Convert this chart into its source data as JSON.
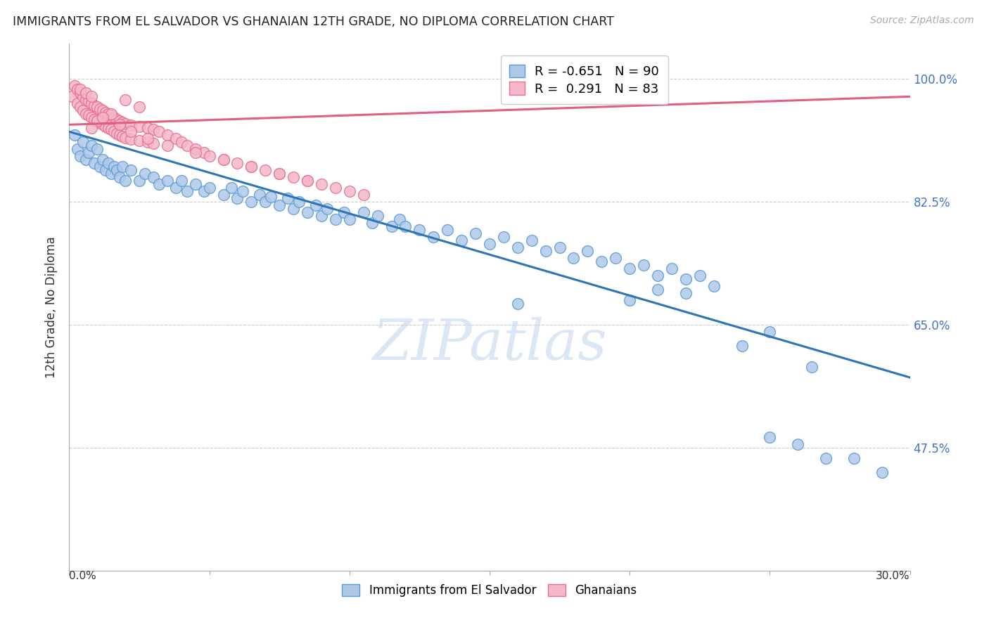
{
  "title": "IMMIGRANTS FROM EL SALVADOR VS GHANAIAN 12TH GRADE, NO DIPLOMA CORRELATION CHART",
  "source": "Source: ZipAtlas.com",
  "ylabel": "12th Grade, No Diploma",
  "ytick_labels": [
    "100.0%",
    "82.5%",
    "65.0%",
    "47.5%"
  ],
  "ytick_values": [
    1.0,
    0.825,
    0.65,
    0.475
  ],
  "xlim": [
    0.0,
    0.3
  ],
  "ylim": [
    0.3,
    1.05
  ],
  "legend_blue_r": "-0.651",
  "legend_blue_n": "90",
  "legend_pink_r": "0.291",
  "legend_pink_n": "83",
  "blue_color": "#aec8e8",
  "pink_color": "#f4b8c8",
  "blue_edge_color": "#5b9bd5",
  "pink_edge_color": "#e87090",
  "blue_line_color": "#2e75b6",
  "pink_line_color": "#e06080",
  "watermark": "ZIPatlas",
  "watermark_blue": "#c5d8f0",
  "blue_trend_x0": 0.0,
  "blue_trend_y0": 0.925,
  "blue_trend_x1": 0.3,
  "blue_trend_y1": 0.575,
  "pink_trend_x0": 0.0,
  "pink_trend_y0": 0.935,
  "pink_trend_x1": 0.3,
  "pink_trend_y1": 0.975,
  "blue_x": [
    0.002,
    0.003,
    0.004,
    0.005,
    0.006,
    0.007,
    0.008,
    0.009,
    0.01,
    0.011,
    0.012,
    0.013,
    0.014,
    0.015,
    0.016,
    0.017,
    0.018,
    0.019,
    0.02,
    0.022,
    0.025,
    0.027,
    0.03,
    0.032,
    0.035,
    0.038,
    0.04,
    0.042,
    0.045,
    0.048,
    0.05,
    0.055,
    0.058,
    0.06,
    0.062,
    0.065,
    0.068,
    0.07,
    0.072,
    0.075,
    0.078,
    0.08,
    0.082,
    0.085,
    0.088,
    0.09,
    0.092,
    0.095,
    0.098,
    0.1,
    0.105,
    0.108,
    0.11,
    0.115,
    0.118,
    0.12,
    0.125,
    0.13,
    0.135,
    0.14,
    0.145,
    0.15,
    0.155,
    0.16,
    0.165,
    0.17,
    0.175,
    0.18,
    0.185,
    0.19,
    0.195,
    0.2,
    0.205,
    0.21,
    0.215,
    0.22,
    0.225,
    0.23,
    0.24,
    0.25,
    0.16,
    0.2,
    0.21,
    0.22,
    0.25,
    0.26,
    0.265,
    0.27,
    0.28,
    0.29
  ],
  "blue_y": [
    0.92,
    0.9,
    0.89,
    0.91,
    0.885,
    0.895,
    0.905,
    0.88,
    0.9,
    0.875,
    0.885,
    0.87,
    0.88,
    0.865,
    0.875,
    0.87,
    0.86,
    0.875,
    0.855,
    0.87,
    0.855,
    0.865,
    0.86,
    0.85,
    0.855,
    0.845,
    0.855,
    0.84,
    0.85,
    0.84,
    0.845,
    0.835,
    0.845,
    0.83,
    0.84,
    0.825,
    0.835,
    0.825,
    0.832,
    0.82,
    0.83,
    0.815,
    0.825,
    0.81,
    0.82,
    0.805,
    0.815,
    0.8,
    0.81,
    0.8,
    0.81,
    0.795,
    0.805,
    0.79,
    0.8,
    0.79,
    0.785,
    0.775,
    0.785,
    0.77,
    0.78,
    0.765,
    0.775,
    0.76,
    0.77,
    0.755,
    0.76,
    0.745,
    0.755,
    0.74,
    0.745,
    0.73,
    0.735,
    0.72,
    0.73,
    0.715,
    0.72,
    0.705,
    0.62,
    0.64,
    0.68,
    0.685,
    0.7,
    0.695,
    0.49,
    0.48,
    0.59,
    0.46,
    0.46,
    0.44
  ],
  "pink_x": [
    0.001,
    0.002,
    0.003,
    0.003,
    0.004,
    0.004,
    0.005,
    0.005,
    0.006,
    0.006,
    0.007,
    0.007,
    0.008,
    0.008,
    0.009,
    0.009,
    0.01,
    0.01,
    0.011,
    0.011,
    0.012,
    0.012,
    0.013,
    0.013,
    0.014,
    0.014,
    0.015,
    0.015,
    0.016,
    0.016,
    0.017,
    0.017,
    0.018,
    0.018,
    0.019,
    0.019,
    0.02,
    0.02,
    0.022,
    0.022,
    0.025,
    0.025,
    0.028,
    0.028,
    0.03,
    0.03,
    0.032,
    0.035,
    0.038,
    0.04,
    0.042,
    0.045,
    0.048,
    0.05,
    0.055,
    0.06,
    0.065,
    0.07,
    0.075,
    0.08,
    0.085,
    0.09,
    0.095,
    0.1,
    0.105,
    0.02,
    0.025,
    0.015,
    0.01,
    0.008,
    0.012,
    0.018,
    0.022,
    0.028,
    0.035,
    0.045,
    0.055,
    0.065,
    0.075,
    0.085,
    0.004,
    0.006,
    0.008
  ],
  "pink_y": [
    0.975,
    0.99,
    0.985,
    0.965,
    0.98,
    0.96,
    0.975,
    0.955,
    0.97,
    0.95,
    0.968,
    0.948,
    0.965,
    0.945,
    0.962,
    0.942,
    0.96,
    0.94,
    0.957,
    0.937,
    0.955,
    0.935,
    0.952,
    0.932,
    0.95,
    0.93,
    0.948,
    0.928,
    0.945,
    0.925,
    0.942,
    0.922,
    0.94,
    0.92,
    0.938,
    0.918,
    0.936,
    0.916,
    0.934,
    0.914,
    0.932,
    0.912,
    0.93,
    0.91,
    0.928,
    0.908,
    0.925,
    0.92,
    0.915,
    0.91,
    0.905,
    0.9,
    0.895,
    0.89,
    0.885,
    0.88,
    0.875,
    0.87,
    0.865,
    0.86,
    0.855,
    0.85,
    0.845,
    0.84,
    0.835,
    0.97,
    0.96,
    0.95,
    0.94,
    0.93,
    0.945,
    0.935,
    0.925,
    0.915,
    0.905,
    0.895,
    0.885,
    0.875,
    0.865,
    0.855,
    0.985,
    0.98,
    0.975
  ]
}
